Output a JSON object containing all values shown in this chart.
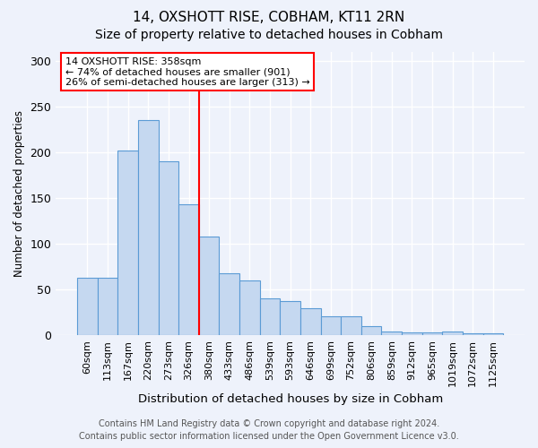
{
  "title1": "14, OXSHOTT RISE, COBHAM, KT11 2RN",
  "title2": "Size of property relative to detached houses in Cobham",
  "xlabel": "Distribution of detached houses by size in Cobham",
  "ylabel": "Number of detached properties",
  "categories": [
    "60sqm",
    "113sqm",
    "167sqm",
    "220sqm",
    "273sqm",
    "326sqm",
    "380sqm",
    "433sqm",
    "486sqm",
    "539sqm",
    "593sqm",
    "646sqm",
    "699sqm",
    "752sqm",
    "806sqm",
    "859sqm",
    "912sqm",
    "965sqm",
    "1019sqm",
    "1072sqm",
    "1125sqm"
  ],
  "values": [
    63,
    63,
    202,
    235,
    190,
    143,
    108,
    68,
    60,
    40,
    37,
    30,
    21,
    21,
    10,
    4,
    3,
    3,
    4,
    2,
    2
  ],
  "bar_color": "#c5d8f0",
  "bar_edge_color": "#5b9bd5",
  "red_line_x": 5.5,
  "annotation_text": "14 OXSHOTT RISE: 358sqm\n← 74% of detached houses are smaller (901)\n26% of semi-detached houses are larger (313) →",
  "annotation_box_color": "white",
  "annotation_box_edge_color": "red",
  "footer1": "Contains HM Land Registry data © Crown copyright and database right 2024.",
  "footer2": "Contains public sector information licensed under the Open Government Licence v3.0.",
  "ylim": [
    0,
    310
  ],
  "yticks": [
    0,
    50,
    100,
    150,
    200,
    250,
    300
  ],
  "background_color": "#eef2fb",
  "title1_fontsize": 11,
  "title2_fontsize": 10,
  "xlabel_fontsize": 9.5,
  "ylabel_fontsize": 8.5,
  "tick_fontsize": 8,
  "annot_fontsize": 8,
  "footer_fontsize": 7
}
